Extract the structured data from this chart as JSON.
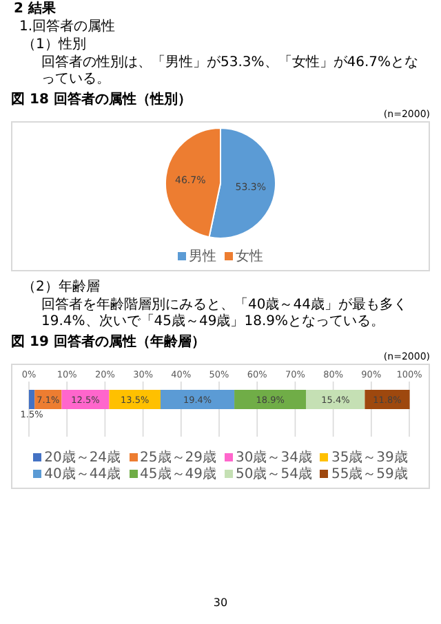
{
  "chart_data": [
    {
      "type": "pie",
      "title": "図 18 回答者の属性（性別）",
      "annotations": [
        "2 結果",
        "1.回答者の属性",
        "（1）性別",
        "回答者の性別は、「男性」が53.3%、「女性」が46.7%となっている。",
        "(n=2000)"
      ],
      "categories": [
        "男性",
        "女性"
      ],
      "values": [
        53.3,
        46.7
      ],
      "colors": [
        "#5b9bd5",
        "#ed7d31"
      ],
      "value_labels": [
        "53.3%",
        "46.7%"
      ],
      "legend": "bottom"
    },
    {
      "type": "bar",
      "orientation": "horizontal",
      "stacked": true,
      "title": "図 19 回答者の属性（年齢層）",
      "annotations": [
        "（2）年齢層",
        "回答者を年齢階層別にみると、「40歳～44歳」が最も多く19.4%、次いで「45歳～49歳」18.9%となっている。",
        "(n=2000)",
        "30"
      ],
      "categories": [
        null
      ],
      "series": [
        {
          "name": "20歳～24歳",
          "color": "#4472c4",
          "values": [
            1.5
          ],
          "value_labels": [
            "1.5%"
          ]
        },
        {
          "name": "25歳～29歳",
          "color": "#ed7d31",
          "values": [
            7.1
          ],
          "value_labels": [
            "7.1%"
          ]
        },
        {
          "name": "30歳～34歳",
          "color": "#ff66cc",
          "values": [
            12.5
          ],
          "value_labels": [
            "12.5%"
          ]
        },
        {
          "name": "35歳～39歳",
          "color": "#ffc000",
          "values": [
            13.5
          ],
          "value_labels": [
            "13.5%"
          ]
        },
        {
          "name": "40歳～44歳",
          "color": "#5b9bd5",
          "values": [
            19.4
          ],
          "value_labels": [
            "19.4%"
          ]
        },
        {
          "name": "45歳～49歳",
          "color": "#70ad47",
          "values": [
            18.9
          ],
          "value_labels": [
            "18.9%"
          ]
        },
        {
          "name": "50歳～54歳",
          "color": "#c5e0b4",
          "values": [
            15.4
          ],
          "value_labels": [
            "15.4%"
          ]
        },
        {
          "name": "55歳～59歳",
          "color": "#9e480e",
          "values": [
            11.8
          ],
          "value_labels": [
            "11.8%"
          ]
        }
      ],
      "xlim": [
        0,
        100
      ],
      "xticks": [
        {
          "value": 0,
          "label": "0%"
        },
        {
          "value": 10,
          "label": "10%"
        },
        {
          "value": 20,
          "label": "20%"
        },
        {
          "value": 30,
          "label": "30%"
        },
        {
          "value": 40,
          "label": "40%"
        },
        {
          "value": 50,
          "label": "50%"
        },
        {
          "value": 60,
          "label": "60%"
        },
        {
          "value": 70,
          "label": "70%"
        },
        {
          "value": 80,
          "label": "80%"
        },
        {
          "value": 90,
          "label": "90%"
        },
        {
          "value": 100,
          "label": "100%"
        }
      ],
      "grid": "x",
      "legend": "bottom"
    }
  ]
}
